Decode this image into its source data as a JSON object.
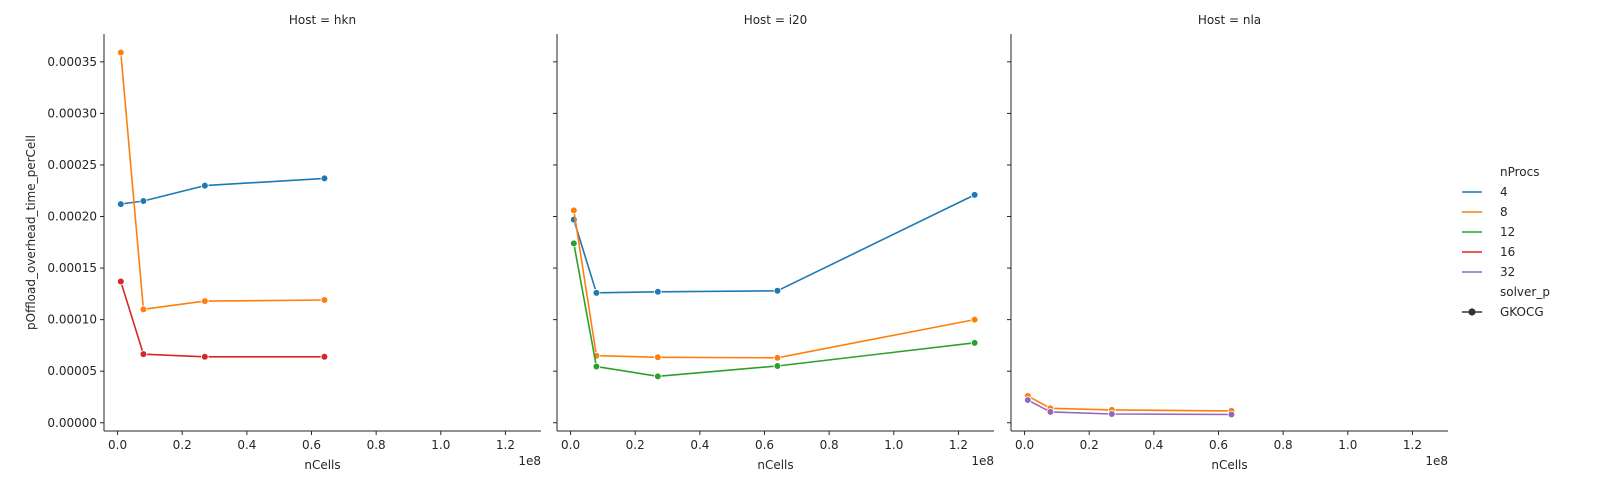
{
  "chart_data": {
    "type": "line",
    "facet_label_prefix": "Host = ",
    "panels": [
      {
        "host": "hkn",
        "series": [
          {
            "name": "4",
            "x": [
              1000000,
              8000000,
              27000000,
              64000000
            ],
            "y": [
              0.000212,
              0.000215,
              0.00023,
              0.000237
            ]
          },
          {
            "name": "8",
            "x": [
              1000000,
              8000000,
              27000000,
              64000000
            ],
            "y": [
              0.000359,
              0.00011,
              0.000118,
              0.000119
            ]
          },
          {
            "name": "16",
            "x": [
              1000000,
              8000000,
              27000000,
              64000000
            ],
            "y": [
              0.000137,
              6.65e-05,
              6.4e-05,
              6.4e-05
            ]
          }
        ]
      },
      {
        "host": "i20",
        "series": [
          {
            "name": "4",
            "x": [
              1000000,
              8000000,
              27000000,
              64000000,
              125000000
            ],
            "y": [
              0.000197,
              0.000126,
              0.000127,
              0.000128,
              0.000221
            ]
          },
          {
            "name": "8",
            "x": [
              1000000,
              8000000,
              27000000,
              64000000,
              125000000
            ],
            "y": [
              0.000206,
              6.5e-05,
              6.35e-05,
              6.3e-05,
              0.0001
            ]
          },
          {
            "name": "12",
            "x": [
              1000000,
              8000000,
              27000000,
              64000000,
              125000000
            ],
            "y": [
              0.000174,
              5.45e-05,
              4.5e-05,
              5.5e-05,
              7.75e-05
            ]
          }
        ]
      },
      {
        "host": "nla",
        "series": [
          {
            "name": "8",
            "x": [
              1000000,
              8000000,
              27000000,
              64000000
            ],
            "y": [
              2.6e-05,
              1.4e-05,
              1.25e-05,
              1.15e-05
            ]
          },
          {
            "name": "32",
            "x": [
              1000000,
              8000000,
              27000000,
              64000000
            ],
            "y": [
              2.2e-05,
              1.05e-05,
              8.5e-06,
              8e-06
            ]
          }
        ]
      }
    ],
    "xlabel": "nCells",
    "ylabel": "pOffload_overhead_time_perCell",
    "x_offset_label": "1e8",
    "x_scale": 100000000,
    "xlim": [
      -4200000,
      131000000
    ],
    "ylim": [
      -8e-06,
      0.000377
    ],
    "xticks": [
      0,
      0.2,
      0.4,
      0.6,
      0.8,
      1.0,
      1.2
    ],
    "xtick_labels": [
      "0.0",
      "0.2",
      "0.4",
      "0.6",
      "0.8",
      "1.0",
      "1.2"
    ],
    "yticks": [
      0,
      5e-05,
      0.0001,
      0.00015,
      0.0002,
      0.00025,
      0.0003,
      0.00035
    ],
    "ytick_labels": [
      "0.00000",
      "0.00005",
      "0.00010",
      "0.00015",
      "0.00020",
      "0.00025",
      "0.00030",
      "0.00035"
    ],
    "sharey": true,
    "grid": false,
    "legend": {
      "placement": "right",
      "hue_title": "nProcs",
      "hue_entries": [
        {
          "label": "4",
          "color": "#1f77b4"
        },
        {
          "label": "8",
          "color": "#ff7f0e"
        },
        {
          "label": "12",
          "color": "#2ca02c"
        },
        {
          "label": "16",
          "color": "#d62728"
        },
        {
          "label": "32",
          "color": "#9467bd"
        }
      ],
      "style_title": "solver_p",
      "style_entries": [
        {
          "label": "GKOCG",
          "color": "#333333"
        }
      ]
    },
    "colors": {
      "4": "#1f77b4",
      "8": "#ff7f0e",
      "12": "#2ca02c",
      "16": "#d62728",
      "32": "#9467bd"
    }
  }
}
